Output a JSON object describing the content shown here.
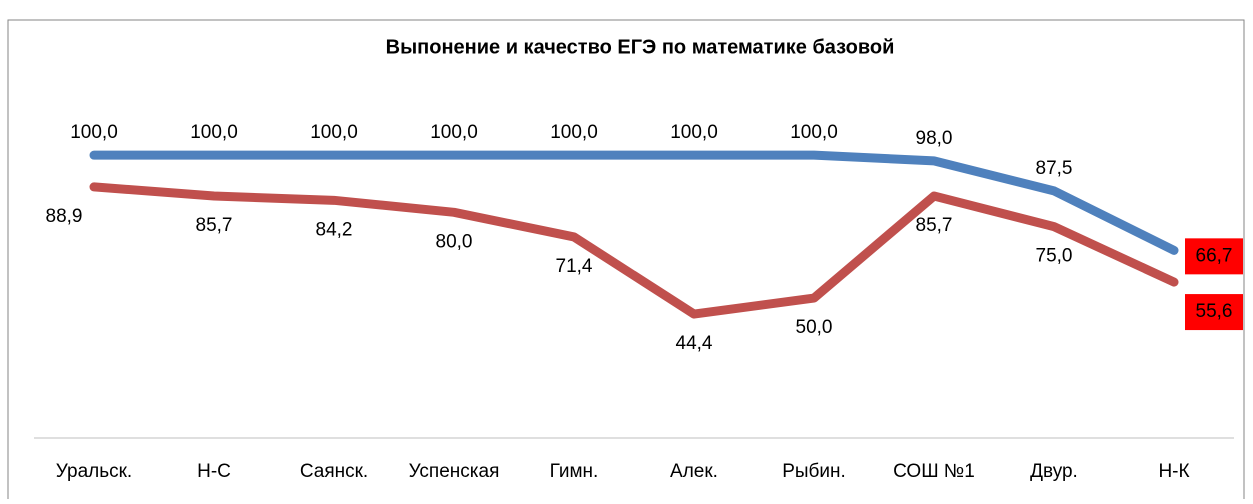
{
  "chart_data": {
    "type": "line",
    "title": "Выпонение и качество ЕГЭ по математике базовой",
    "categories": [
      "Уральск.",
      "Н-С",
      "Саянск.",
      "Успенская",
      "Гимн.",
      "Алек.",
      "Рыбин.",
      "СОШ №1",
      "Двур.",
      "Н-К"
    ],
    "series": [
      {
        "color": "#4f81bd",
        "values": [
          100,
          100,
          100,
          100,
          100,
          100,
          100,
          98,
          87.5,
          66.7
        ],
        "value_labels": [
          "100,0",
          "100,0",
          "100,0",
          "100,0",
          "100,0",
          "100,0",
          "100,0",
          "98,0",
          "87,5",
          "66,7"
        ],
        "last_label_background": "#ff0000"
      },
      {
        "color": "#c0504d",
        "values": [
          88.9,
          85.7,
          84.2,
          80,
          71.4,
          44.4,
          50,
          85.7,
          75,
          55.6
        ],
        "value_labels": [
          "88,9",
          "85,7",
          "84,2",
          "80,0",
          "71,4",
          "44,4",
          "50,0",
          "85,7",
          "75,0",
          "55,6"
        ],
        "last_label_background": "#ff0000"
      }
    ],
    "ylim": [
      0,
      120
    ]
  }
}
